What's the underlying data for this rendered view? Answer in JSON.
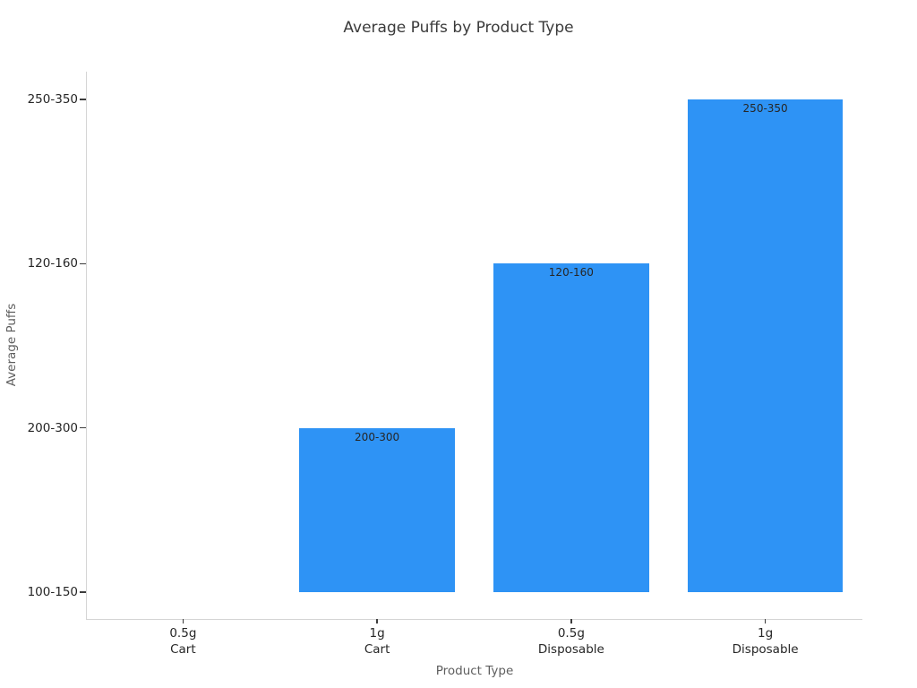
{
  "chart_data": {
    "type": "bar",
    "title": "Average Puffs by Product Type",
    "xlabel": "Product Type",
    "ylabel": "Average Puffs",
    "categories": [
      "0.5g\nCart",
      "1g\nCart",
      "0.5g\nDisposable",
      "1g\nDisposable"
    ],
    "values": [
      "100-150",
      "200-300",
      "120-160",
      "250-350"
    ],
    "y_ticks_bottom_to_top": [
      "100-150",
      "200-300",
      "120-160",
      "250-350"
    ],
    "bar_labels": [
      "",
      "200-300",
      "120-160",
      "250-350"
    ],
    "orientation": "vertical",
    "grid": false,
    "legend": "none",
    "colors": {
      "bar": "#2E93F5",
      "title": "#3A3A3A",
      "tick_label": "#262626",
      "axis_label": "#5E5E5E",
      "spine": "#D5D5D5",
      "tick_mark": "#3C3C3C",
      "bar_label": "#262626",
      "background": "#FFFFFF"
    }
  }
}
